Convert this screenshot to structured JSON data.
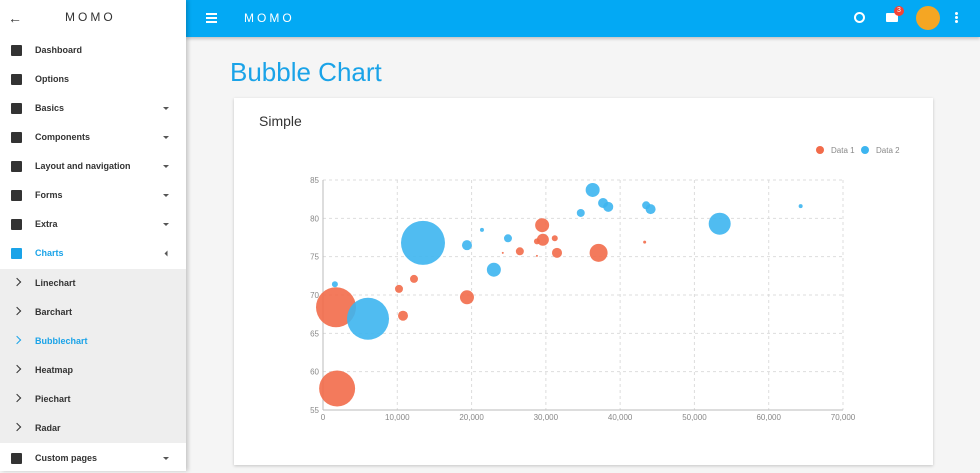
{
  "sidebar": {
    "brand": "MOMO",
    "menu": [
      "Dashboard",
      "Options",
      "Basics",
      "Components",
      "Layout and navigation",
      "Forms",
      "Extra",
      "Charts"
    ],
    "submenu": [
      "Linechart",
      "Barchart",
      "Bubblechart",
      "Heatmap",
      "Piechart",
      "Radar"
    ],
    "footer_item": "Custom pages"
  },
  "header": {
    "brand": "MOMO",
    "badge": "3"
  },
  "page_title": "Bubble Chart",
  "card_title": "Simple",
  "chart_data": {
    "type": "bubble",
    "series": [
      {
        "name": "Data 1",
        "color": "#f26b4a",
        "x": [
          1750,
          1900,
          10230,
          12250,
          10770,
          19380,
          26500,
          29500,
          29600,
          28800,
          31200,
          31500,
          37100,
          43300,
          24200,
          28800
        ],
        "values": [
          68.4,
          57.8,
          70.8,
          72.1,
          67.3,
          69.7,
          75.7,
          79.1,
          77.2,
          77.0,
          77.4,
          75.5,
          75.5,
          76.9,
          75.5,
          75.1
        ],
        "sizes": [
          20,
          18,
          4,
          4,
          5,
          7,
          4,
          7,
          6,
          3,
          3,
          5,
          9,
          1.5,
          1,
          1
        ]
      },
      {
        "name": "Data 2",
        "color": "#3db5f0",
        "x": [
          1600,
          6060,
          13460,
          19380,
          21400,
          23000,
          24900,
          34700,
          36300,
          37700,
          38400,
          43500,
          44100,
          53400,
          64300
        ],
        "values": [
          71.4,
          66.9,
          76.8,
          76.5,
          78.5,
          73.3,
          77.4,
          80.7,
          83.7,
          82.0,
          81.5,
          81.7,
          81.2,
          79.3,
          81.6
        ],
        "sizes": [
          3,
          21,
          22,
          5,
          2,
          7,
          4,
          4,
          7,
          5,
          5,
          4,
          5,
          11,
          2
        ]
      }
    ],
    "xlim": [
      0,
      70000
    ],
    "xticks": [
      0,
      {
        "value": 10000,
        "label": "10,000"
      },
      {
        "value": 20000,
        "label": "20,000"
      },
      {
        "value": 30000,
        "label": "30,000"
      },
      {
        "value": 40000,
        "label": "40,000"
      },
      {
        "value": 50000,
        "label": "50,000"
      },
      {
        "value": 60000,
        "label": "60,000"
      },
      {
        "value": 70000,
        "label": "70,000"
      }
    ],
    "ylim": [
      55,
      85
    ],
    "yticks": [
      55,
      60,
      65,
      70,
      75,
      80,
      85
    ],
    "grid": true
  }
}
